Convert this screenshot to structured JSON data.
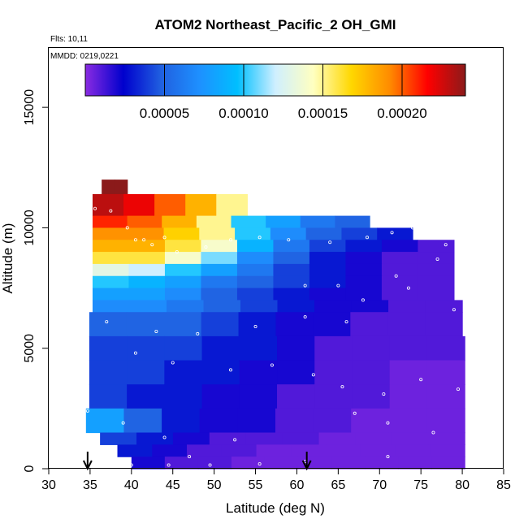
{
  "chart_data": {
    "type": "heatmap",
    "title": "ATOM2 Northeast_Pacific_2 OH_GMI",
    "flights_label": "Flts: 10,11",
    "dates_label": "MMDD: 0219,0221",
    "xlabel": "Latitude (deg N)",
    "ylabel": "Altitude (m)",
    "xlim": [
      30,
      85
    ],
    "ylim": [
      0,
      17500
    ],
    "xticks": [
      "30",
      "35",
      "40",
      "45",
      "50",
      "55",
      "60",
      "65",
      "70",
      "75",
      "80",
      "85"
    ],
    "xtick_values": [
      30,
      35,
      40,
      45,
      50,
      55,
      60,
      65,
      70,
      75,
      80,
      85
    ],
    "yticks": [
      "0",
      "5000",
      "10000",
      "15000"
    ],
    "ytick_values": [
      0,
      5000,
      10000,
      15000
    ],
    "colorbar": {
      "min": 0.0,
      "max": 0.00024,
      "tick_labels": [
        "0.00005",
        "0.00010",
        "0.00015",
        "0.00020"
      ],
      "tick_values": [
        5e-05,
        0.0001,
        0.00015,
        0.0002
      ],
      "colors": [
        "#8a2be2",
        "#0000cd",
        "#2060e0",
        "#1e90ff",
        "#00bfff",
        "#cfefff",
        "#ffffc0",
        "#ffd700",
        "#ff8c00",
        "#ff0000",
        "#8b1a1a"
      ]
    },
    "markers": [
      {
        "x": 34.7,
        "label": "arrow"
      },
      {
        "x": 61.2,
        "label": "arrow"
      }
    ],
    "altitude_bands": [
      {
        "alt_min": 11400,
        "alt_max": 12000,
        "lat_min": 36.4,
        "lat_max": 39.5,
        "values": [
          0.00024,
          0.00024
        ]
      },
      {
        "alt_min": 10500,
        "alt_max": 11400,
        "lat_min": 35.3,
        "lat_max": 54.0,
        "values": [
          0.00023,
          0.00022,
          0.0002,
          0.00018,
          0.00015
        ]
      },
      {
        "alt_min": 10000,
        "alt_max": 10500,
        "lat_min": 35.3,
        "lat_max": 68.8,
        "values": [
          0.00021,
          0.0002,
          0.00018,
          0.00015,
          0.0001,
          8e-05,
          6e-05,
          5e-05
        ]
      },
      {
        "alt_min": 9500,
        "alt_max": 10000,
        "lat_min": 35.3,
        "lat_max": 74.0,
        "values": [
          0.00019,
          0.00019,
          0.00017,
          0.00015,
          0.0001,
          7e-05,
          5e-05,
          4e-05,
          3e-05
        ]
      },
      {
        "alt_min": 9000,
        "alt_max": 9500,
        "lat_min": 35.3,
        "lat_max": 79.0,
        "values": [
          0.00018,
          0.00018,
          0.00016,
          0.00014,
          9e-05,
          6e-05,
          4e-05,
          3e-05,
          2e-05,
          1e-05
        ]
      },
      {
        "alt_min": 8500,
        "alt_max": 9000,
        "lat_min": 35.3,
        "lat_max": 79.0,
        "values": [
          0.00016,
          0.00016,
          0.00014,
          0.00011,
          7e-05,
          5e-05,
          3e-05,
          2e-05,
          1e-05,
          1e-05
        ]
      },
      {
        "alt_min": 8000,
        "alt_max": 8500,
        "lat_min": 35.3,
        "lat_max": 79.0,
        "values": [
          0.00013,
          0.00012,
          0.0001,
          8e-05,
          6e-05,
          4e-05,
          3e-05,
          2e-05,
          1e-05,
          1e-05
        ]
      },
      {
        "alt_min": 7500,
        "alt_max": 8000,
        "lat_min": 35.3,
        "lat_max": 79.0,
        "values": [
          0.0001,
          9e-05,
          8e-05,
          6e-05,
          5e-05,
          4e-05,
          3e-05,
          2e-05,
          1e-05,
          1e-05
        ]
      },
      {
        "alt_min": 7000,
        "alt_max": 7500,
        "lat_min": 35.3,
        "lat_max": 79.0,
        "values": [
          8e-05,
          8e-05,
          7e-05,
          5e-05,
          4e-05,
          3e-05,
          2e-05,
          2e-05,
          1e-05,
          1e-05
        ]
      },
      {
        "alt_min": 6500,
        "alt_max": 7000,
        "lat_min": 35.3,
        "lat_max": 80.0,
        "values": [
          7e-05,
          7e-05,
          6e-05,
          5e-05,
          4e-05,
          3e-05,
          2e-05,
          2e-05,
          1e-05,
          1e-05
        ]
      },
      {
        "alt_min": 5500,
        "alt_max": 6500,
        "lat_min": 34.9,
        "lat_max": 80.0,
        "values": [
          5e-05,
          5e-05,
          5e-05,
          4e-05,
          3e-05,
          2e-05,
          2e-05,
          1e-05,
          1e-05,
          1e-05
        ]
      },
      {
        "alt_min": 4500,
        "alt_max": 5500,
        "lat_min": 34.9,
        "lat_max": 80.3,
        "values": [
          4e-05,
          4e-05,
          4e-05,
          3e-05,
          3e-05,
          2e-05,
          1e-05,
          1e-05,
          1e-05,
          1e-05
        ]
      },
      {
        "alt_min": 3500,
        "alt_max": 4500,
        "lat_min": 34.9,
        "lat_max": 80.3,
        "values": [
          4e-05,
          4e-05,
          3e-05,
          3e-05,
          2e-05,
          2e-05,
          1e-05,
          1e-05,
          5e-06,
          5e-06
        ]
      },
      {
        "alt_min": 2500,
        "alt_max": 3500,
        "lat_min": 34.9,
        "lat_max": 80.3,
        "values": [
          4e-05,
          3e-05,
          3e-05,
          2e-05,
          2e-05,
          1e-05,
          1e-05,
          1e-05,
          5e-06,
          5e-06
        ]
      },
      {
        "alt_min": 1500,
        "alt_max": 2500,
        "lat_min": 34.5,
        "lat_max": 80.3,
        "values": [
          8e-05,
          5e-05,
          3e-05,
          2e-05,
          2e-05,
          1e-05,
          1e-05,
          5e-06,
          5e-06,
          5e-06
        ]
      },
      {
        "alt_min": 1000,
        "alt_max": 1500,
        "lat_min": 36.2,
        "lat_max": 80.3,
        "values": [
          4e-05,
          3e-05,
          2e-05,
          1e-05,
          1e-05,
          1e-05,
          5e-06,
          5e-06,
          5e-06,
          5e-06
        ]
      },
      {
        "alt_min": 500,
        "alt_max": 1000,
        "lat_min": 38.3,
        "lat_max": 80.3,
        "values": [
          3e-05,
          2e-05,
          1e-05,
          1e-05,
          5e-06,
          5e-06,
          5e-06,
          5e-06,
          5e-06,
          5e-06
        ]
      },
      {
        "alt_min": 0,
        "alt_max": 500,
        "lat_min": 40.0,
        "lat_max": 80.3,
        "values": [
          2e-05,
          1e-05,
          1e-05,
          5e-06,
          5e-06,
          5e-06,
          5e-06,
          5e-06,
          5e-06,
          5e-06
        ]
      }
    ],
    "sample_points": [
      [
        35.6,
        10800
      ],
      [
        37.5,
        10700
      ],
      [
        39.5,
        10000
      ],
      [
        40.5,
        9500
      ],
      [
        41.5,
        9500
      ],
      [
        42.5,
        9300
      ],
      [
        44.0,
        9600
      ],
      [
        45.5,
        9000
      ],
      [
        49.0,
        9200
      ],
      [
        52.0,
        9500
      ],
      [
        55.5,
        9600
      ],
      [
        59.0,
        9500
      ],
      [
        64.0,
        9400
      ],
      [
        68.5,
        9600
      ],
      [
        71.5,
        9800
      ],
      [
        74.0,
        10000
      ],
      [
        76.5,
        9600
      ],
      [
        78.0,
        9300
      ],
      [
        77.0,
        8700
      ],
      [
        72.0,
        8000
      ],
      [
        61.0,
        7600
      ],
      [
        65.0,
        7600
      ],
      [
        68.0,
        7000
      ],
      [
        73.5,
        7500
      ],
      [
        79.0,
        6600
      ],
      [
        66.0,
        6100
      ],
      [
        61.0,
        6300
      ],
      [
        55.0,
        5900
      ],
      [
        48.0,
        5600
      ],
      [
        43.0,
        5700
      ],
      [
        37.0,
        6100
      ],
      [
        40.5,
        4800
      ],
      [
        45.0,
        4400
      ],
      [
        52.0,
        4100
      ],
      [
        57.0,
        4300
      ],
      [
        62.0,
        3900
      ],
      [
        65.5,
        3400
      ],
      [
        70.5,
        3100
      ],
      [
        75.0,
        3700
      ],
      [
        79.5,
        3300
      ],
      [
        67.0,
        2300
      ],
      [
        71.0,
        1900
      ],
      [
        76.5,
        1500
      ],
      [
        71.0,
        500
      ],
      [
        61.0,
        300
      ],
      [
        55.5,
        200
      ],
      [
        49.5,
        150
      ],
      [
        44.5,
        150
      ],
      [
        40.0,
        150
      ],
      [
        37.5,
        900
      ],
      [
        34.7,
        2400
      ],
      [
        39.0,
        1900
      ],
      [
        44.0,
        1300
      ],
      [
        47.0,
        500
      ],
      [
        52.5,
        1200
      ]
    ]
  }
}
